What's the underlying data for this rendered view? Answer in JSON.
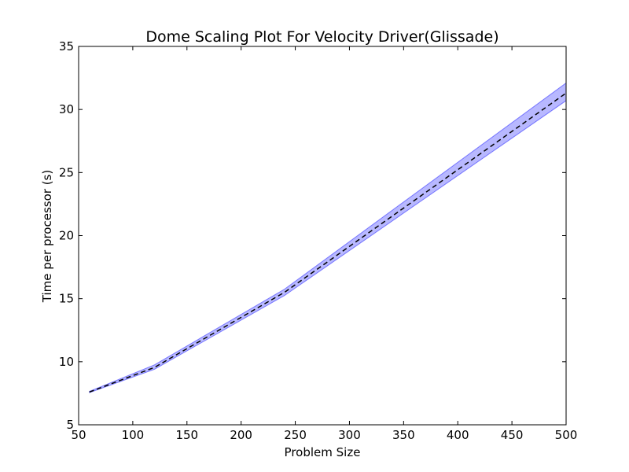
{
  "chart_data": {
    "type": "line",
    "title": "Dome  Scaling Plot For Velocity Driver(Glissade)",
    "xlabel": "Problem Size",
    "ylabel": "Time per processor (s)",
    "xlim": [
      50,
      500
    ],
    "ylim": [
      5,
      35
    ],
    "xticks": [
      50,
      100,
      150,
      200,
      250,
      300,
      350,
      400,
      450,
      500
    ],
    "yticks": [
      5,
      10,
      15,
      20,
      25,
      30,
      35
    ],
    "grid": false,
    "series": [
      {
        "style": "dashed",
        "color": "#000000",
        "x": [
          60,
          120,
          240,
          500
        ],
        "y": [
          7.6,
          9.55,
          15.5,
          31.3
        ],
        "band_lower": [
          7.55,
          9.4,
          15.25,
          30.7
        ],
        "band_upper": [
          7.65,
          9.75,
          15.75,
          32.1
        ],
        "band_color": "#0000ff"
      }
    ]
  }
}
